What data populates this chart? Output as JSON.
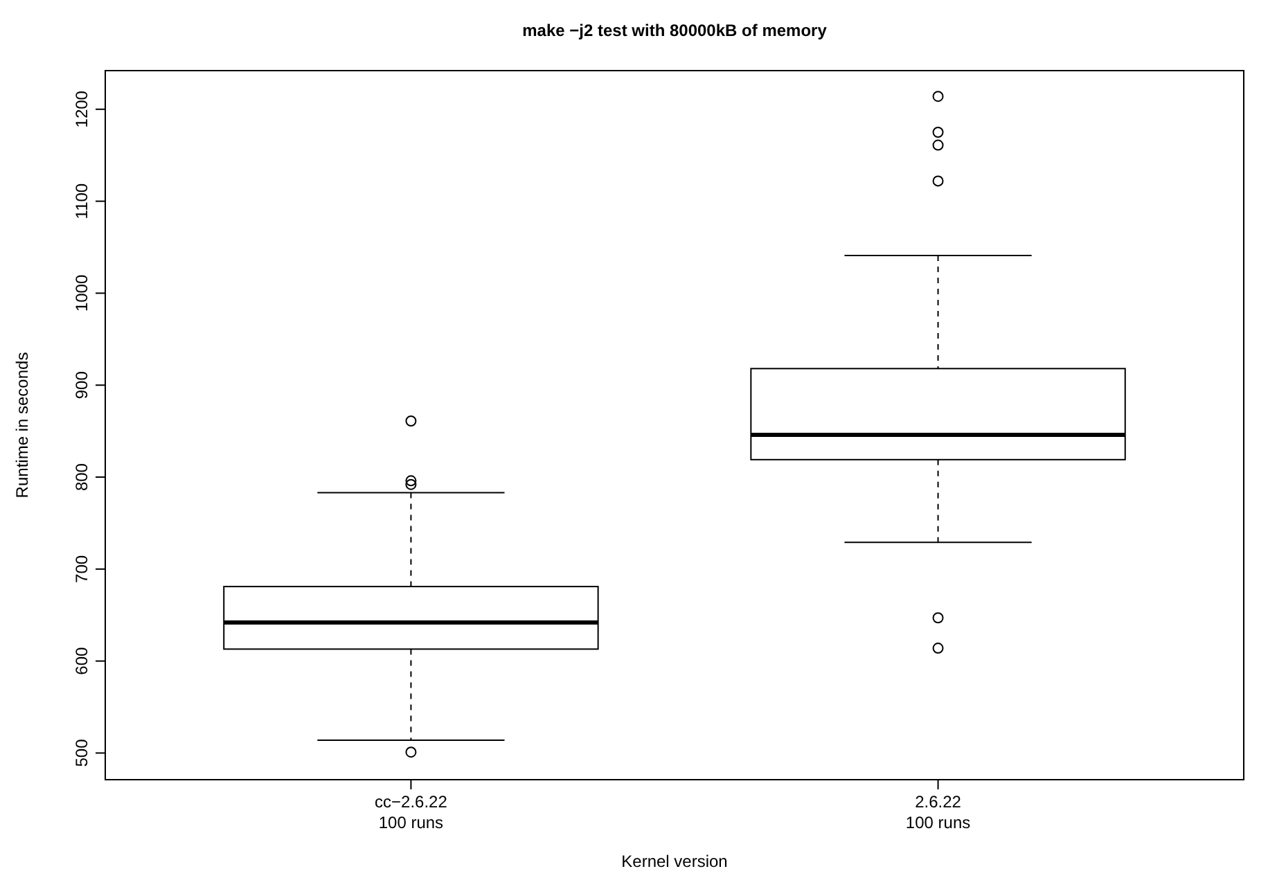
{
  "chart_data": {
    "type": "box",
    "title": "make −j2 test with 80000kB of memory",
    "xlabel": "Kernel version",
    "ylabel": "Runtime in seconds",
    "categories": [
      "cc−2.6.22\n100 runs",
      "2.6.22\n100 runs"
    ],
    "boxes": [
      {
        "low": 514,
        "q1": 613,
        "median": 642,
        "q3": 681,
        "high": 783,
        "outliers": [
          861,
          796,
          792,
          501
        ]
      },
      {
        "low": 729,
        "q1": 819,
        "median": 846,
        "q3": 918,
        "high": 1041,
        "outliers": [
          1214,
          1175,
          1161,
          1122,
          647,
          614
        ]
      }
    ],
    "ylim": [
      471,
      1242
    ],
    "yticks": [
      500,
      600,
      700,
      800,
      900,
      1000,
      1100,
      1200
    ]
  }
}
